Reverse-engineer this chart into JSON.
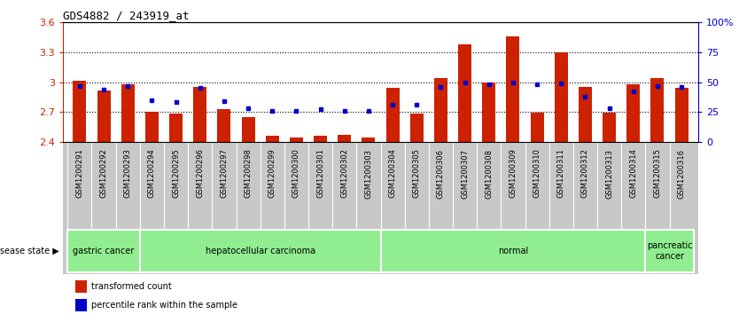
{
  "title": "GDS4882 / 243919_at",
  "samples": [
    "GSM1200291",
    "GSM1200292",
    "GSM1200293",
    "GSM1200294",
    "GSM1200295",
    "GSM1200296",
    "GSM1200297",
    "GSM1200298",
    "GSM1200299",
    "GSM1200300",
    "GSM1200301",
    "GSM1200302",
    "GSM1200303",
    "GSM1200304",
    "GSM1200305",
    "GSM1200306",
    "GSM1200307",
    "GSM1200308",
    "GSM1200309",
    "GSM1200310",
    "GSM1200311",
    "GSM1200312",
    "GSM1200313",
    "GSM1200314",
    "GSM1200315",
    "GSM1200316"
  ],
  "red_values": [
    3.01,
    2.92,
    2.98,
    2.7,
    2.68,
    2.95,
    2.73,
    2.65,
    2.46,
    2.44,
    2.46,
    2.47,
    2.44,
    2.94,
    2.68,
    3.04,
    3.38,
    3.0,
    3.46,
    2.69,
    3.3,
    2.95,
    2.69,
    2.98,
    3.04,
    2.94
  ],
  "blue_percentiles": [
    47,
    44,
    47,
    35,
    33,
    45,
    34,
    28,
    26,
    26,
    27,
    26,
    26,
    31,
    31,
    46,
    50,
    48,
    50,
    48,
    49,
    38,
    28,
    42,
    47,
    46
  ],
  "disease_groups": [
    {
      "label": "gastric cancer",
      "start": 0,
      "end": 2
    },
    {
      "label": "hepatocellular carcinoma",
      "start": 3,
      "end": 12
    },
    {
      "label": "normal",
      "start": 13,
      "end": 23
    },
    {
      "label": "pancreatic\ncancer",
      "start": 24,
      "end": 25
    }
  ],
  "ylim_left": [
    2.4,
    3.6
  ],
  "ylim_right": [
    0,
    100
  ],
  "yticks_left": [
    2.4,
    2.7,
    3.0,
    3.3,
    3.6
  ],
  "yticks_right": [
    0,
    25,
    50,
    75,
    100
  ],
  "ytick_labels_left": [
    "2.4",
    "2.7",
    "3",
    "3.3",
    "3.6"
  ],
  "ytick_labels_right": [
    "0",
    "25",
    "50",
    "75",
    "100%"
  ],
  "bar_color": "#CC2200",
  "dot_color": "#0000CC",
  "background_plot": "#FFFFFF",
  "background_xtick": "#C8C8C8",
  "background_disease": "#90EE90",
  "grid_color": "#000000",
  "title_color": "#000000",
  "red_label": "transformed count",
  "blue_label": "percentile rank within the sample",
  "disease_state_label": "disease state"
}
